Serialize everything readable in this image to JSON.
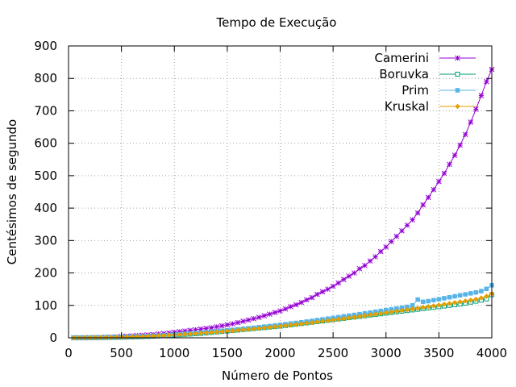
{
  "chart_data": {
    "type": "line",
    "title": "Tempo de Execução",
    "xlabel": "Número de Pontos",
    "ylabel": "Centésimos de segundo",
    "xlim": [
      0,
      4000
    ],
    "ylim": [
      0,
      900
    ],
    "xticks": [
      0,
      500,
      1000,
      1500,
      2000,
      2500,
      3000,
      3500,
      4000
    ],
    "yticks": [
      0,
      100,
      200,
      300,
      400,
      500,
      600,
      700,
      800,
      900
    ],
    "grid": true,
    "legend_position": "top-right",
    "x": [
      50,
      100,
      150,
      200,
      250,
      300,
      350,
      400,
      450,
      500,
      550,
      600,
      650,
      700,
      750,
      800,
      850,
      900,
      950,
      1000,
      1050,
      1100,
      1150,
      1200,
      1250,
      1300,
      1350,
      1400,
      1450,
      1500,
      1550,
      1600,
      1650,
      1700,
      1750,
      1800,
      1850,
      1900,
      1950,
      2000,
      2050,
      2100,
      2150,
      2200,
      2250,
      2300,
      2350,
      2400,
      2450,
      2500,
      2550,
      2600,
      2650,
      2700,
      2750,
      2800,
      2850,
      2900,
      2950,
      3000,
      3050,
      3100,
      3150,
      3200,
      3250,
      3300,
      3350,
      3400,
      3450,
      3500,
      3550,
      3600,
      3650,
      3700,
      3750,
      3800,
      3850,
      3900,
      3950,
      4000
    ],
    "series": [
      {
        "name": "Camerini",
        "color": "#9400d3",
        "marker": "star",
        "values": [
          0.1,
          0.1,
          0.2,
          0.4,
          0.6,
          1,
          1.6,
          2.3,
          3,
          4,
          5,
          6,
          7,
          8,
          9,
          10,
          12,
          13,
          15,
          17,
          19,
          21,
          23,
          25,
          27,
          29,
          31,
          34,
          37,
          40,
          43,
          47,
          51,
          55,
          59,
          63,
          68,
          73,
          78,
          83,
          89,
          96,
          102,
          109,
          117,
          124,
          134,
          142,
          150,
          159,
          169,
          180,
          190,
          200,
          213,
          223,
          237,
          250,
          266,
          280,
          297,
          313,
          330,
          347,
          364,
          385,
          410,
          433,
          457,
          482,
          507,
          535,
          563,
          594,
          627,
          665,
          705,
          747,
          790,
          828
        ]
      },
      {
        "name": "Boruvka",
        "color": "#009e73",
        "marker": "square-open",
        "values": [
          0.1,
          0.1,
          0.2,
          0.3,
          0.4,
          0.6,
          0.8,
          1,
          1.3,
          1.6,
          2,
          2.5,
          3,
          3.6,
          4.2,
          5,
          5.8,
          6.6,
          7.5,
          8.5,
          9.5,
          10.5,
          11.5,
          12.5,
          13.5,
          15,
          16.5,
          18,
          19.5,
          21,
          22.5,
          24,
          25.5,
          27,
          28.5,
          30,
          31.5,
          33,
          34.5,
          36,
          38,
          40,
          42,
          44,
          46,
          48,
          50,
          52,
          54,
          56,
          58,
          60,
          62,
          64,
          66,
          68,
          70,
          72,
          74,
          76,
          78,
          80,
          82,
          84,
          86,
          88,
          90,
          92,
          94,
          96,
          98,
          100,
          102,
          104,
          107,
          110,
          113,
          116,
          120,
          133
        ]
      },
      {
        "name": "Prim",
        "color": "#56b4e9",
        "marker": "square",
        "values": [
          0.1,
          0.2,
          0.3,
          0.4,
          0.6,
          0.8,
          1,
          1.3,
          1.6,
          2,
          2.5,
          3,
          3.7,
          4.4,
          5.2,
          6,
          7,
          8,
          9,
          10,
          11.2,
          12.4,
          13.6,
          14.8,
          16,
          17.4,
          18.8,
          20.2,
          21.6,
          23,
          24.6,
          26.2,
          27.8,
          29.4,
          31,
          32.8,
          34.6,
          36.4,
          38.2,
          40,
          42,
          44,
          46,
          48,
          50,
          52.3,
          54.6,
          56.9,
          59.2,
          61.5,
          63.8,
          66.1,
          68.4,
          70.7,
          73,
          75.5,
          78,
          80.5,
          83,
          85.5,
          88,
          90.5,
          93,
          95.5,
          100,
          118,
          111,
          113,
          116,
          119,
          122,
          125,
          128,
          131,
          134,
          137,
          140,
          144,
          151,
          162
        ]
      },
      {
        "name": "Kruskal",
        "color": "#e69f00",
        "marker": "diamond",
        "values": [
          0.1,
          0.2,
          0.3,
          0.4,
          0.6,
          0.8,
          1,
          1.3,
          1.6,
          2,
          2.5,
          3,
          3.5,
          4.1,
          4.8,
          5.5,
          6.3,
          7.1,
          8,
          9,
          10,
          11,
          12,
          13,
          14.2,
          15.4,
          16.6,
          17.8,
          19,
          20.4,
          21.8,
          23.2,
          24.6,
          26,
          27.6,
          29.2,
          30.8,
          32.4,
          34,
          35.8,
          37.6,
          39.4,
          41.2,
          43,
          45,
          47,
          49,
          51,
          53,
          55,
          57.2,
          59.4,
          61.6,
          63.8,
          66,
          68.3,
          70.6,
          72.9,
          75.2,
          77.5,
          79.8,
          82.1,
          84.4,
          86.7,
          89,
          91.4,
          93.8,
          96.2,
          98.6,
          101,
          103.5,
          106,
          108.5,
          111,
          113.5,
          116,
          119,
          123,
          128,
          136
        ]
      }
    ]
  }
}
